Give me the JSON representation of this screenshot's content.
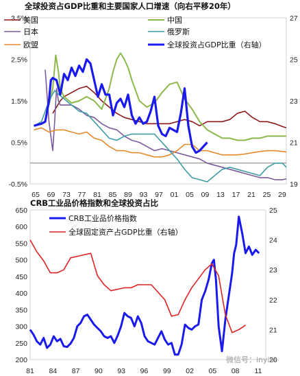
{
  "chart_data": [
    {
      "type": "line",
      "title": "全球投资占GDP比重和主要国家人口增速（向右平移20年）",
      "xlabel": "",
      "ylabel_left": "",
      "ylabel_right": "",
      "x_range": [
        64,
        132
      ],
      "x_ticks": [
        "65",
        "69",
        "73",
        "77",
        "81",
        "85",
        "89",
        "93",
        "97",
        "01",
        "05",
        "09",
        "13",
        "17",
        "21",
        "25",
        "29"
      ],
      "ylim_left": [
        -0.5,
        3.5
      ],
      "ylim_right": [
        19,
        27
      ],
      "y_ticks_left": [
        "-0.5%",
        "0.5%",
        "1.5%",
        "2.5%",
        "3.5%"
      ],
      "y_ticks_right": [
        "19",
        "21",
        "23",
        "25",
        "27"
      ],
      "legend_position": "top",
      "series": [
        {
          "name": "美国",
          "axis": "left",
          "color": "#8b1a1a",
          "width": 1.6,
          "x": [
            70,
            71,
            72,
            73,
            75,
            77,
            79,
            81,
            83,
            85,
            87,
            89,
            91,
            93,
            95,
            97,
            99,
            101,
            103,
            105,
            107,
            109,
            111,
            113,
            115,
            117,
            119,
            121,
            123,
            125,
            127,
            129,
            131,
            132
          ],
          "y": [
            1.2,
            1.35,
            1.5,
            1.6,
            1.7,
            1.8,
            1.85,
            1.7,
            1.5,
            1.35,
            1.2,
            1.1,
            1.05,
            1.0,
            0.95,
            0.95,
            0.95,
            0.95,
            1.0,
            1.05,
            1.0,
            0.9,
            1.0,
            1.0,
            1.0,
            1.05,
            1.2,
            1.25,
            1.1,
            1.0,
            1.0,
            0.95,
            0.88,
            0.85
          ]
        },
        {
          "name": "日本",
          "axis": "left",
          "color": "#7b5a9c",
          "width": 1.6,
          "x": [
            68,
            69,
            70,
            70.5,
            71,
            71.5,
            72,
            73,
            75,
            77,
            79,
            81,
            83,
            85,
            87,
            89,
            91,
            93,
            95,
            97,
            99,
            101,
            103,
            105,
            107,
            109,
            111,
            113,
            115,
            117,
            119,
            121,
            123,
            125,
            127,
            129,
            131,
            132
          ],
          "y": [
            2.25,
            1.0,
            0.3,
            1.0,
            1.8,
            1.5,
            1.4,
            1.4,
            1.4,
            1.3,
            1.15,
            1.1,
            0.95,
            0.85,
            0.8,
            0.65,
            0.55,
            0.5,
            0.4,
            0.3,
            0.35,
            0.3,
            0.25,
            0.2,
            0.15,
            0.1,
            0.0,
            -0.05,
            -0.1,
            -0.15,
            -0.2,
            -0.25,
            -0.3,
            -0.35,
            -0.35,
            -0.4,
            -0.4,
            -0.38
          ]
        },
        {
          "name": "欧盟",
          "axis": "left",
          "color": "#e6892a",
          "width": 1.6,
          "x": [
            65,
            67,
            69,
            71,
            73,
            75,
            77,
            79,
            81,
            83,
            85,
            87,
            89,
            91,
            93,
            95,
            97,
            99,
            101,
            103,
            105,
            107,
            109,
            111,
            113,
            115,
            117,
            119,
            121,
            123,
            125,
            127,
            129,
            131,
            132
          ],
          "y": [
            0.8,
            0.85,
            0.75,
            0.8,
            0.8,
            0.75,
            0.7,
            0.75,
            0.6,
            0.55,
            0.4,
            0.3,
            0.3,
            0.25,
            0.25,
            0.2,
            0.15,
            0.15,
            0.2,
            0.3,
            0.45,
            0.45,
            0.3,
            0.3,
            0.25,
            0.2,
            0.2,
            0.2,
            0.22,
            0.25,
            0.28,
            0.3,
            0.3,
            0.28,
            0.27
          ]
        },
        {
          "name": "中国",
          "axis": "left",
          "color": "#8cb84a",
          "width": 2.0,
          "x": [
            69,
            70,
            70.8,
            71.5,
            72,
            73,
            75,
            77,
            79,
            81,
            83,
            85,
            86,
            87,
            88,
            89,
            90,
            91,
            93,
            95,
            97,
            99,
            101,
            103,
            105,
            107,
            109,
            111,
            113,
            115,
            117,
            119,
            121,
            123,
            125,
            127,
            129,
            131,
            132
          ],
          "y": [
            1.4,
            1.8,
            2.6,
            2.2,
            1.8,
            1.6,
            1.45,
            1.5,
            1.6,
            1.5,
            1.3,
            1.8,
            2.2,
            2.5,
            2.65,
            2.5,
            2.3,
            2.0,
            1.5,
            1.35,
            1.45,
            1.7,
            1.9,
            1.95,
            1.55,
            1.3,
            1.0,
            0.8,
            0.7,
            0.6,
            0.6,
            0.55,
            0.55,
            0.6,
            0.6,
            0.65,
            0.65,
            0.65,
            0.65
          ]
        },
        {
          "name": "俄罗斯",
          "axis": "left",
          "color": "#3f9ca4",
          "width": 1.6,
          "x": [
            65,
            67,
            69,
            70.5,
            71,
            73,
            75,
            77,
            79,
            81,
            83,
            85,
            87,
            89,
            91,
            93,
            95,
            97,
            99,
            101,
            103,
            105,
            107,
            109,
            111,
            113,
            115,
            117,
            119,
            121,
            123,
            125,
            127,
            129,
            131,
            132
          ],
          "y": [
            0.9,
            1.0,
            1.5,
            1.75,
            1.7,
            1.55,
            1.4,
            1.25,
            1.2,
            1.0,
            0.8,
            0.6,
            0.55,
            0.65,
            0.7,
            0.7,
            0.7,
            0.7,
            0.5,
            0.3,
            0.1,
            -0.15,
            -0.35,
            -0.4,
            -0.45,
            -0.3,
            -0.15,
            -0.1,
            -0.15,
            -0.2,
            -0.25,
            -0.3,
            -0.1,
            0.0,
            0.0,
            -0.1
          ]
        },
        {
          "name": "全球投资占GDP比重（右轴）",
          "axis": "right",
          "color": "#1a1aee",
          "width": 3.2,
          "x": [
            65,
            67,
            68,
            69,
            69.5,
            70,
            71,
            72,
            73,
            74,
            75,
            76,
            77,
            78,
            79,
            80,
            81,
            82,
            83,
            84,
            85,
            86,
            87,
            88,
            89,
            90,
            91,
            92,
            93,
            94,
            95,
            96,
            97,
            98,
            99,
            100,
            101,
            102,
            103,
            104,
            105,
            106,
            107,
            108,
            109,
            110,
            111
          ],
          "y": [
            21.8,
            21.9,
            22.0,
            23.0,
            24.0,
            24.1,
            24.0,
            23.3,
            24.3,
            24.0,
            24.6,
            24.2,
            24.7,
            24.4,
            25.0,
            24.8,
            24.0,
            23.2,
            23.8,
            23.3,
            23.3,
            22.3,
            22.9,
            23.1,
            22.7,
            23.3,
            22.3,
            21.9,
            22.2,
            21.9,
            22.0,
            22.5,
            23.2,
            21.8,
            21.4,
            21.3,
            21.7,
            21.6,
            21.5,
            22.4,
            23.6,
            21.8,
            20.8,
            20.5,
            20.6,
            20.8,
            21.0
          ]
        }
      ]
    },
    {
      "type": "line",
      "title": "CRB工业品价格指数和全球投资占比",
      "xlabel": "",
      "ylabel_left": "",
      "ylabel_right": "",
      "x_range": [
        81,
        116
      ],
      "x_ticks": [
        "81",
        "84",
        "87",
        "90",
        "93",
        "96",
        "99",
        "02",
        "05",
        "08",
        "11"
      ],
      "ylim_left": [
        200,
        650
      ],
      "ylim_right": [
        20,
        25
      ],
      "y_ticks_left": [
        "200",
        "250",
        "300",
        "350",
        "400",
        "450",
        "500",
        "550",
        "600",
        "650"
      ],
      "y_ticks_right": [
        "20",
        "21",
        "22",
        "23",
        "24",
        "25"
      ],
      "legend_position": "top-left",
      "series": [
        {
          "name": "CRB工业品价格指数",
          "axis": "left",
          "color": "#1a1aee",
          "width": 3.0,
          "x": [
            81,
            81.5,
            82,
            82.5,
            83,
            83.5,
            84,
            84.5,
            85,
            85.5,
            86,
            86.5,
            87,
            87.5,
            88,
            88.5,
            89,
            89.5,
            90,
            90.5,
            91,
            91.5,
            92,
            92.5,
            93,
            93.5,
            94,
            94.5,
            95,
            95.5,
            96,
            96.5,
            97,
            97.5,
            98,
            98.5,
            99,
            99.5,
            100,
            100.5,
            101,
            101.5,
            102,
            102.5,
            103,
            103.5,
            104,
            104.5,
            105,
            105.5,
            106,
            106.5,
            107,
            107.5,
            108,
            108.3,
            108.6,
            109,
            109.5,
            110,
            110.5,
            111,
            111.3,
            111.6,
            112,
            112.5,
            113,
            113.5,
            114,
            114.5,
            115
          ],
          "y": [
            290,
            275,
            255,
            245,
            265,
            235,
            245,
            270,
            255,
            262,
            240,
            238,
            248,
            265,
            300,
            310,
            330,
            335,
            320,
            305,
            295,
            285,
            270,
            265,
            270,
            250,
            272,
            300,
            340,
            330,
            325,
            300,
            330,
            310,
            270,
            255,
            250,
            245,
            265,
            285,
            260,
            245,
            250,
            215,
            215,
            245,
            305,
            295,
            290,
            300,
            305,
            380,
            405,
            440,
            490,
            500,
            440,
            300,
            225,
            320,
            390,
            460,
            520,
            545,
            630,
            580,
            520,
            540,
            515,
            530,
            520
          ]
        },
        {
          "name": "全球固定资产占GDP比重（右轴）",
          "axis": "right",
          "color": "#dd2222",
          "width": 1.6,
          "x": [
            81,
            82,
            83,
            84,
            85,
            86,
            87,
            88,
            89,
            90,
            91,
            92,
            93,
            94,
            95,
            96,
            97,
            98,
            99,
            100,
            101,
            102,
            103,
            104,
            105,
            106,
            107,
            108,
            109,
            110,
            111,
            112,
            113
          ],
          "y": [
            24.0,
            23.6,
            23.3,
            22.9,
            22.9,
            23.0,
            23.4,
            23.45,
            23.5,
            23.55,
            22.8,
            22.5,
            22.3,
            22.35,
            22.4,
            22.4,
            22.5,
            22.5,
            22.5,
            22.25,
            22.0,
            21.45,
            21.5,
            22.0,
            22.4,
            22.7,
            23.0,
            23.2,
            22.8,
            21.5,
            20.9,
            21.0,
            21.15
          ]
        }
      ]
    }
  ],
  "watermark": "微信号：inyiiii"
}
